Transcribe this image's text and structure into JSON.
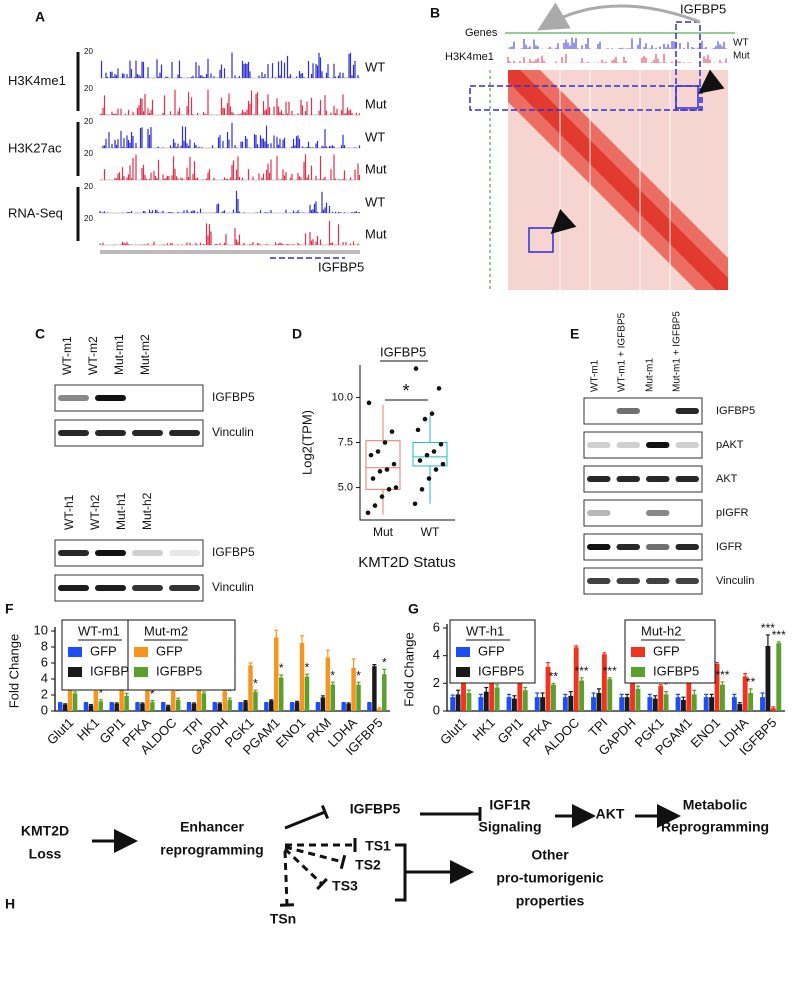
{
  "panel_labels": [
    "A",
    "B",
    "C",
    "D",
    "E",
    "F",
    "G",
    "H"
  ],
  "panel_a": {
    "groups": [
      {
        "name": "H3K4me1",
        "tracks": [
          {
            "sample": "WT",
            "scale": 20,
            "color": "#2e2ed6"
          },
          {
            "sample": "Mut",
            "scale": 20,
            "color": "#e0304a"
          }
        ]
      },
      {
        "name": "H3K27ac",
        "tracks": [
          {
            "sample": "WT",
            "scale": 20,
            "color": "#2e2ed6"
          },
          {
            "sample": "Mut",
            "scale": 20,
            "color": "#e0304a"
          }
        ]
      },
      {
        "name": "RNA-Seq",
        "tracks": [
          {
            "sample": "WT",
            "scale": 20,
            "color": "#2e2ed6"
          },
          {
            "sample": "Mut",
            "scale": 20,
            "color": "#e0304a"
          }
        ]
      }
    ],
    "gene": "IGFBP5"
  },
  "panel_b": {
    "genes_label": "Genes",
    "track_label": "H3K4me1",
    "samples": [
      "WT",
      "Mut"
    ],
    "gene": "IGFBP5"
  },
  "panel_c": {
    "blots": [
      {
        "lanes": [
          "WT-m1",
          "WT-m2",
          "Mut-m1",
          "Mut-m2"
        ],
        "rows": [
          "IGFBP5",
          "Vinculin"
        ]
      },
      {
        "lanes": [
          "WT-h1",
          "WT-h2",
          "Mut-h1",
          "Mut-h2"
        ],
        "rows": [
          "IGFBP5",
          "Vinculin"
        ]
      }
    ]
  },
  "panel_e": {
    "lanes": [
      "WT-m1",
      "WT-m1 + IGFBP5",
      "Mut-m1",
      "Mut-m1 + IGFBP5"
    ],
    "rows": [
      "IGFBP5",
      "pAKT",
      "AKT",
      "pIGFR",
      "IGFR",
      "Vinculin"
    ]
  },
  "panel_h": {
    "nodes": [
      {
        "lines": [
          "KMT2D",
          "Loss"
        ]
      },
      {
        "lines": [
          "Enhancer",
          "reprogramming"
        ]
      },
      {
        "lines": [
          "IGFBP5"
        ]
      },
      {
        "lines": [
          "IGF1R",
          "Signaling"
        ]
      },
      {
        "lines": [
          "AKT"
        ]
      },
      {
        "lines": [
          "Metabolic",
          "Reprogramming"
        ]
      },
      {
        "lines": [
          "TS1"
        ]
      },
      {
        "lines": [
          "TS2"
        ]
      },
      {
        "lines": [
          "TS3"
        ]
      },
      {
        "lines": [
          "TSn"
        ]
      },
      {
        "lines": [
          "Other",
          "pro-tumorigenic",
          "properties"
        ]
      }
    ]
  },
  "chart_data": [
    {
      "type": "box",
      "title": "IGFBP5",
      "x_label": "KMT2D Status",
      "y_label": "Log2(TPM)",
      "categories": [
        "Mut",
        "WT"
      ],
      "boxes": [
        {
          "color": "#e8786e",
          "min": 3.5,
          "q1": 4.9,
          "median": 6.1,
          "q3": 7.6,
          "max": 9.6,
          "points": [
            3.6,
            4.0,
            4.5,
            4.9,
            5.0,
            5.5,
            5.9,
            6.0,
            6.3,
            6.8,
            7.0,
            7.5,
            8.1,
            9.7
          ]
        },
        {
          "color": "#1ec0c0",
          "min": 4.1,
          "q1": 6.2,
          "median": 6.7,
          "q3": 7.5,
          "max": 9.0,
          "points": [
            4.1,
            4.9,
            5.5,
            6.0,
            6.3,
            6.5,
            6.8,
            7.0,
            7.4,
            8.2,
            8.8,
            9.1,
            10.5,
            11.6
          ]
        }
      ],
      "annotation": "*",
      "ylim": [
        3.2,
        11.8
      ],
      "yticks": [
        {
          "value": 5,
          "label": "5.0"
        },
        {
          "value": 7.5,
          "label": "7.5"
        },
        {
          "value": 10,
          "label": "10.0"
        }
      ]
    },
    {
      "type": "bar",
      "y_label": "Fold Change",
      "categories": [
        "Glut1",
        "HK1",
        "GPI1",
        "PFKA",
        "ALDOC",
        "TPI",
        "GAPDH",
        "PGK1",
        "PGAM1",
        "ENO1",
        "PKM",
        "LDHA",
        "IGFBP5"
      ],
      "series": [
        {
          "group": "WT-m1",
          "name": "GFP",
          "color": "#1f4df5",
          "values": [
            1,
            1,
            1,
            1,
            1,
            1,
            1,
            1,
            1,
            1,
            1,
            1,
            1
          ],
          "errors": [
            0.05,
            0.05,
            0.05,
            0.05,
            0.05,
            0.05,
            0.05,
            0.05,
            0.05,
            0.05,
            0.05,
            0.05,
            0.05
          ]
        },
        {
          "group": "WT-m1",
          "name": "IGFBP5",
          "color": "#1a1a1a",
          "values": [
            0.8,
            0.7,
            0.9,
            0.9,
            0.6,
            0.9,
            0.9,
            1.2,
            1.3,
            1.1,
            1.7,
            0.9,
            5.6
          ],
          "errors": [
            0.1,
            0.1,
            0.1,
            0.1,
            0.1,
            0.1,
            0.1,
            0.1,
            0.1,
            0.1,
            0.2,
            0.1,
            0.2
          ]
        },
        {
          "group": "Mut-m2",
          "name": "GFP",
          "color": "#f7941d",
          "values": [
            3.5,
            2.5,
            3.2,
            3.3,
            2.5,
            3.5,
            2.4,
            5.7,
            9.2,
            8.5,
            6.7,
            5.4,
            0.3
          ],
          "errors": [
            0.1,
            0.2,
            0.2,
            0.4,
            0.2,
            0.2,
            0.1,
            0.3,
            0.9,
            0.9,
            0.9,
            1.1,
            0.1
          ]
        },
        {
          "group": "Mut-m2",
          "name": "IGFBP5",
          "color": "#5aa02c",
          "values": [
            2.2,
            1.2,
            1.9,
            1.1,
            1.4,
            2.2,
            1.4,
            2.4,
            4.2,
            4.3,
            3.3,
            3.3,
            4.6
          ],
          "errors": [
            0.2,
            0.2,
            0.3,
            0.2,
            0.2,
            0.2,
            0.2,
            0.2,
            0.3,
            0.3,
            0.3,
            0.3,
            0.6
          ],
          "significance": [
            "*",
            "*",
            "*",
            "*",
            "*",
            "*",
            "*",
            "*",
            "*",
            "*",
            "*",
            "*",
            "*"
          ]
        }
      ],
      "ylim": [
        0,
        10
      ],
      "yticks": [
        0,
        2,
        4,
        6,
        8,
        10
      ]
    },
    {
      "type": "bar",
      "y_label": "Fold Change",
      "categories": [
        "Glut1",
        "HK1",
        "GPI1",
        "PFKA",
        "ALDOC",
        "TPI",
        "GAPDH",
        "PGK1",
        "PGAM1",
        "ENO1",
        "LDHA",
        "IGFBP5"
      ],
      "series": [
        {
          "group": "WT-h1",
          "name": "GFP",
          "color": "#1f4df5",
          "values": [
            1,
            1,
            1,
            1,
            1,
            1,
            1,
            1,
            1,
            1,
            1,
            1
          ],
          "errors": [
            0.15,
            0.2,
            0.2,
            0.3,
            0.2,
            0.3,
            0.2,
            0.2,
            0.2,
            0.2,
            0.2,
            0.3
          ]
        },
        {
          "group": "WT-h1",
          "name": "IGFBP5",
          "color": "#1a1a1a",
          "values": [
            1.2,
            1.4,
            0.9,
            1.0,
            1.1,
            1.3,
            1.0,
            0.9,
            0.8,
            1.0,
            0.5,
            4.7
          ],
          "errors": [
            0.3,
            0.3,
            0.2,
            0.3,
            0.3,
            0.3,
            0.2,
            0.2,
            0.2,
            0.2,
            0.1,
            0.8
          ],
          "significance": [
            null,
            null,
            null,
            null,
            null,
            null,
            null,
            null,
            null,
            null,
            null,
            "***"
          ]
        },
        {
          "group": "Mut-h2",
          "name": "GFP",
          "color": "#f2321e",
          "values": [
            3.2,
            3.4,
            3.0,
            3.2,
            4.6,
            4.1,
            2.2,
            1.8,
            2.1,
            3.4,
            2.5,
            0.2
          ],
          "errors": [
            0.2,
            0.3,
            0.3,
            0.3,
            0.1,
            0.1,
            0.1,
            0.1,
            0.2,
            0.1,
            0.2,
            0.1
          ]
        },
        {
          "group": "Mut-h2",
          "name": "IGFBP5",
          "color": "#5aa02c",
          "values": [
            1.3,
            1.7,
            1.5,
            1.9,
            2.2,
            2.3,
            1.6,
            1.2,
            1.2,
            1.9,
            1.3,
            4.9
          ],
          "errors": [
            0.2,
            0.2,
            0.2,
            0.1,
            0.2,
            0.1,
            0.2,
            0.2,
            0.3,
            0.2,
            0.3,
            0.1
          ],
          "significance": [
            "***",
            "**",
            "**",
            "**",
            "***",
            "***",
            "**",
            "*",
            "*",
            "***",
            "**",
            "***"
          ]
        }
      ],
      "ylim": [
        0,
        6
      ],
      "yticks": [
        0,
        2,
        4,
        6
      ]
    }
  ]
}
